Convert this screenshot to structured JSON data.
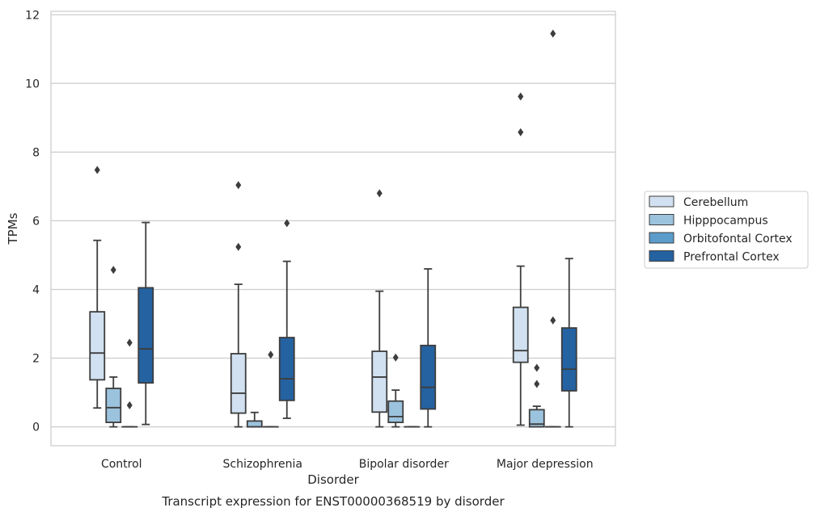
{
  "chart_data": {
    "type": "boxplot",
    "title": "Transcript expression for ENST00000368519 by disorder",
    "xlabel": "Disorder",
    "ylabel": "TPMs",
    "ylim": [
      -0.55,
      12.1
    ],
    "yticks": [
      0,
      2,
      4,
      6,
      8,
      10,
      12
    ],
    "grid": "horizontal",
    "legend_position": "right",
    "categories": [
      "Control",
      "Schizophrenia",
      "Bipolar disorder",
      "Major depression"
    ],
    "series": [
      {
        "name": "Cerebellum",
        "color": "#d1e1f1",
        "boxes": [
          {
            "whisker_low": 0.55,
            "q1": 1.37,
            "median": 2.15,
            "q3": 3.35,
            "whisker_high": 5.43,
            "outliers": [
              7.48
            ]
          },
          {
            "whisker_low": 0.0,
            "q1": 0.4,
            "median": 0.98,
            "q3": 2.13,
            "whisker_high": 4.15,
            "outliers": [
              5.24,
              7.04
            ]
          },
          {
            "whisker_low": 0.0,
            "q1": 0.43,
            "median": 1.45,
            "q3": 2.2,
            "whisker_high": 3.95,
            "outliers": [
              6.8
            ]
          },
          {
            "whisker_low": 0.05,
            "q1": 1.88,
            "median": 2.22,
            "q3": 3.48,
            "whisker_high": 4.68,
            "outliers": [
              8.58,
              9.62
            ]
          }
        ]
      },
      {
        "name": "Hipppocampus",
        "color": "#9cc3de",
        "boxes": [
          {
            "whisker_low": 0.0,
            "q1": 0.13,
            "median": 0.56,
            "q3": 1.12,
            "whisker_high": 1.45,
            "outliers": [
              4.57
            ]
          },
          {
            "whisker_low": 0.0,
            "q1": 0.0,
            "median": 0.0,
            "q3": 0.17,
            "whisker_high": 0.42,
            "outliers": []
          },
          {
            "whisker_low": 0.0,
            "q1": 0.13,
            "median": 0.3,
            "q3": 0.75,
            "whisker_high": 1.07,
            "outliers": [
              2.02
            ]
          },
          {
            "whisker_low": 0.0,
            "q1": 0.0,
            "median": 0.08,
            "q3": 0.5,
            "whisker_high": 0.6,
            "outliers": [
              1.25,
              1.72
            ]
          }
        ]
      },
      {
        "name": "Orbitofontal Cortex",
        "color": "#5b9ccb",
        "boxes": [
          {
            "whisker_low": 0.0,
            "q1": 0.0,
            "median": 0.0,
            "q3": 0.0,
            "whisker_high": 0.0,
            "outliers": [
              0.63,
              2.45
            ]
          },
          {
            "whisker_low": 0.0,
            "q1": 0.0,
            "median": 0.0,
            "q3": 0.0,
            "whisker_high": 0.0,
            "outliers": [
              2.1
            ]
          },
          {
            "whisker_low": 0.0,
            "q1": 0.0,
            "median": 0.0,
            "q3": 0.0,
            "whisker_high": 0.0,
            "outliers": []
          },
          {
            "whisker_low": 0.0,
            "q1": 0.0,
            "median": 0.0,
            "q3": 0.0,
            "whisker_high": 0.0,
            "outliers": [
              3.1,
              11.45
            ]
          }
        ]
      },
      {
        "name": "Prefrontal Cortex",
        "color": "#2462a1",
        "boxes": [
          {
            "whisker_low": 0.07,
            "q1": 1.28,
            "median": 2.27,
            "q3": 4.05,
            "whisker_high": 5.95,
            "outliers": []
          },
          {
            "whisker_low": 0.25,
            "q1": 0.77,
            "median": 1.4,
            "q3": 2.6,
            "whisker_high": 4.82,
            "outliers": [
              5.93
            ]
          },
          {
            "whisker_low": 0.0,
            "q1": 0.52,
            "median": 1.15,
            "q3": 2.37,
            "whisker_high": 4.6,
            "outliers": []
          },
          {
            "whisker_low": 0.0,
            "q1": 1.05,
            "median": 1.68,
            "q3": 2.88,
            "whisker_high": 4.9,
            "outliers": []
          }
        ]
      }
    ]
  }
}
